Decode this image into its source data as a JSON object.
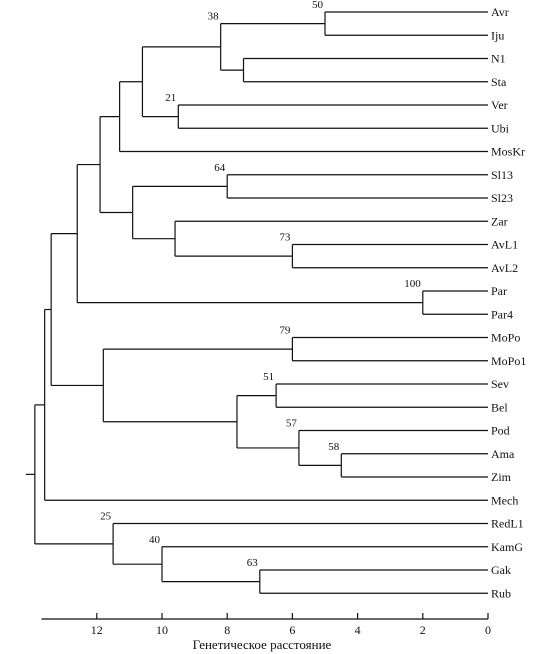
{
  "figure": {
    "axis_label": "Генетическое расстояние",
    "axis_ticks": [
      "12",
      "10",
      "8",
      "6",
      "4",
      "2",
      "0"
    ],
    "axis_tick_values": [
      12,
      10,
      8,
      6,
      4,
      2,
      0
    ],
    "axis_range": [
      13.7,
      0
    ]
  },
  "leaves": [
    "Avr",
    "Iju",
    "N1",
    "Sta",
    "Ver",
    "Ubi",
    "MosKr",
    "Sl13",
    "Sl23",
    "Zar",
    "AvL1",
    "AvL2",
    "Par",
    "Par4",
    "MoPo",
    "MoPo1",
    "Sev",
    "Bel",
    "Pod",
    "Ama",
    "Zim",
    "Mech",
    "RedL1",
    "KamG",
    "Gak",
    "Rub"
  ],
  "clusters": [
    {
      "id": "c_avr_iju",
      "children": [
        "Avr",
        "Iju"
      ],
      "height": 5.0,
      "bootstrap": "50"
    },
    {
      "id": "c_n1_sta",
      "children": [
        "N1",
        "Sta"
      ],
      "height": 7.5,
      "bootstrap": ""
    },
    {
      "id": "c_a1",
      "children": [
        "c_avr_iju",
        "c_n1_sta"
      ],
      "height": 8.2,
      "bootstrap": "38"
    },
    {
      "id": "c_ver_ubi",
      "children": [
        "Ver",
        "Ubi"
      ],
      "height": 9.5,
      "bootstrap": "21"
    },
    {
      "id": "c_a2",
      "children": [
        "c_a1",
        "c_ver_ubi"
      ],
      "height": 10.6,
      "bootstrap": ""
    },
    {
      "id": "c_a3",
      "children": [
        "c_a2",
        "MosKr"
      ],
      "height": 11.3,
      "bootstrap": ""
    },
    {
      "id": "c_sl",
      "children": [
        "Sl13",
        "Sl23"
      ],
      "height": 8.0,
      "bootstrap": "64"
    },
    {
      "id": "c_avl",
      "children": [
        "AvL1",
        "AvL2"
      ],
      "height": 6.0,
      "bootstrap": "73"
    },
    {
      "id": "c_zar",
      "children": [
        "Zar",
        "c_avl"
      ],
      "height": 9.6,
      "bootstrap": ""
    },
    {
      "id": "c_b1",
      "children": [
        "c_sl",
        "c_zar"
      ],
      "height": 10.9,
      "bootstrap": ""
    },
    {
      "id": "c_ab",
      "children": [
        "c_a3",
        "c_b1"
      ],
      "height": 11.9,
      "bootstrap": ""
    },
    {
      "id": "c_par",
      "children": [
        "Par",
        "Par4"
      ],
      "height": 2.0,
      "bootstrap": "100"
    },
    {
      "id": "c_abp",
      "children": [
        "c_ab",
        "c_par"
      ],
      "height": 12.6,
      "bootstrap": ""
    },
    {
      "id": "c_mopo",
      "children": [
        "MoPo",
        "MoPo1"
      ],
      "height": 6.0,
      "bootstrap": "79"
    },
    {
      "id": "c_sev_bel",
      "children": [
        "Sev",
        "Bel"
      ],
      "height": 6.5,
      "bootstrap": "51"
    },
    {
      "id": "c_ama_zim",
      "children": [
        "Ama",
        "Zim"
      ],
      "height": 4.5,
      "bootstrap": "58"
    },
    {
      "id": "c_pod",
      "children": [
        "Pod",
        "c_ama_zim"
      ],
      "height": 5.8,
      "bootstrap": "57"
    },
    {
      "id": "c_sbpz",
      "children": [
        "c_sev_bel",
        "c_pod"
      ],
      "height": 7.7,
      "bootstrap": ""
    },
    {
      "id": "c_m",
      "children": [
        "c_mopo",
        "c_sbpz"
      ],
      "height": 11.8,
      "bootstrap": ""
    },
    {
      "id": "c_big",
      "children": [
        "c_abp",
        "c_m"
      ],
      "height": 13.4,
      "bootstrap": ""
    },
    {
      "id": "c_big2",
      "children": [
        "c_big",
        "Mech"
      ],
      "height": 13.6,
      "bootstrap": ""
    },
    {
      "id": "c_gak_rub",
      "children": [
        "Gak",
        "Rub"
      ],
      "height": 7.0,
      "bootstrap": "63"
    },
    {
      "id": "c_kamg",
      "children": [
        "KamG",
        "c_gak_rub"
      ],
      "height": 10.0,
      "bootstrap": "40"
    },
    {
      "id": "c_red",
      "children": [
        "RedL1",
        "c_kamg"
      ],
      "height": 11.5,
      "bootstrap": "25"
    },
    {
      "id": "c_root",
      "children": [
        "c_big2",
        "c_red"
      ],
      "height": 13.9,
      "bootstrap": ""
    }
  ]
}
